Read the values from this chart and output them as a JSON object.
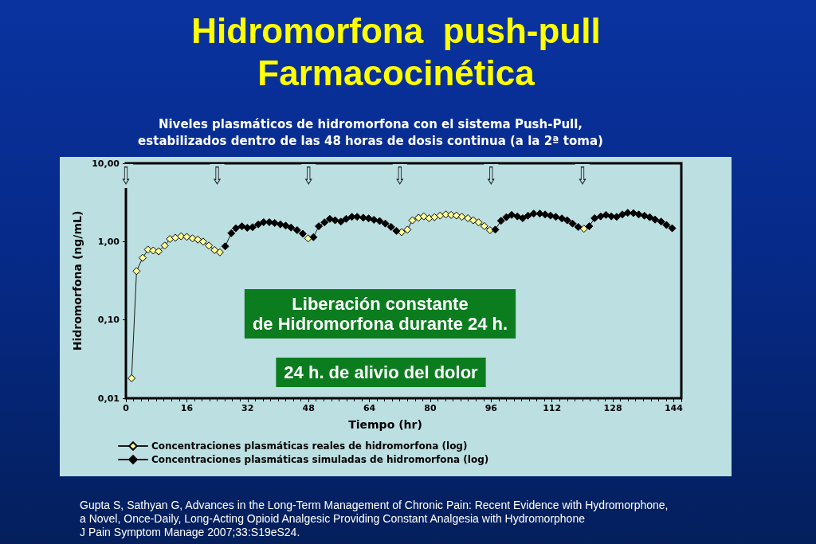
{
  "chart_data": {
    "type": "line",
    "title": "Hidromorfona  push-pull\nFarmacocinética",
    "subtitle": "Niveles plasmáticos de hidromorfona con el sistema Push-Pull,\nestabilizados dentro de las 48 horas de dosis continua (a la 2ª toma)",
    "xlabel": "Tiempo (hr)",
    "ylabel": "Hidromorfona (ng/mL)",
    "xlim": [
      0,
      146
    ],
    "xticks": [
      0,
      16,
      32,
      48,
      64,
      80,
      96,
      112,
      128,
      144
    ],
    "ylim": [
      0.01,
      10
    ],
    "yticks": [
      {
        "value": 0.01,
        "label": "0,01"
      },
      {
        "value": 0.1,
        "label": "0,10"
      },
      {
        "value": 1,
        "label": "1,00"
      },
      {
        "value": 10,
        "label": "10,00"
      }
    ],
    "log": true,
    "marker": "diamond",
    "legend": "bottom",
    "series": [
      {
        "name": "Concentraciones plasmáticas reales de hidromorfona (log)",
        "color": "#ffff99",
        "x": [
          1.5,
          2.8,
          4.4,
          5.8,
          7.2,
          8.6,
          10.2,
          11.6,
          13.0,
          14.5,
          16.0,
          17.5,
          18.9,
          20.3,
          21.8,
          23.3,
          24.7,
          26.1,
          47.9,
          49.3,
          72.5,
          74.0,
          75.3,
          76.9,
          78.3,
          79.7,
          81.1,
          82.6,
          84.1,
          85.5,
          86.9,
          88.3,
          89.9,
          91.3,
          92.7,
          94.2,
          95.7,
          97.1,
          120.4
        ],
        "values": [
          0.018,
          0.42,
          0.62,
          0.79,
          0.77,
          0.75,
          0.89,
          1.08,
          1.12,
          1.17,
          1.15,
          1.1,
          1.06,
          1.0,
          0.89,
          0.78,
          0.73,
          null,
          1.1,
          null,
          1.32,
          1.42,
          1.87,
          2.02,
          2.1,
          1.99,
          2.05,
          2.15,
          2.22,
          2.19,
          2.15,
          2.07,
          1.99,
          1.87,
          1.76,
          1.58,
          1.4,
          null,
          1.46
        ]
      },
      {
        "name": "Concentraciones plasmáticas simuladas de hidromorfona (log)",
        "color": "#000000",
        "x": [
          26.1,
          27.7,
          28.9,
          30.5,
          31.9,
          33.3,
          34.8,
          36.2,
          37.7,
          39.1,
          40.6,
          42.0,
          43.4,
          45.0,
          46.5,
          47.9,
          49.3,
          50.7,
          52.2,
          53.6,
          55.0,
          56.5,
          57.9,
          59.4,
          60.8,
          62.4,
          63.8,
          65.2,
          66.7,
          68.2,
          69.7,
          71.1,
          72.5,
          97.1,
          98.6,
          100.0,
          101.4,
          102.9,
          104.3,
          105.7,
          107.2,
          108.8,
          110.2,
          111.6,
          113.0,
          114.6,
          116.0,
          117.4,
          118.9,
          120.4,
          121.8,
          123.2,
          124.8,
          126.2,
          127.6,
          129.0,
          130.5,
          131.9,
          133.4,
          134.8,
          136.3,
          137.7,
          139.1,
          140.7,
          142.1,
          143.6
        ],
        "values": [
          0.87,
          1.28,
          1.48,
          1.57,
          1.5,
          1.53,
          1.66,
          1.77,
          1.77,
          1.73,
          1.66,
          1.6,
          1.51,
          1.4,
          1.26,
          null,
          1.14,
          1.57,
          1.76,
          1.95,
          1.87,
          1.8,
          1.95,
          2.07,
          2.07,
          2.02,
          1.98,
          1.9,
          1.83,
          1.7,
          1.54,
          1.37,
          null,
          1.42,
          1.84,
          2.05,
          2.19,
          2.1,
          1.99,
          2.14,
          2.28,
          2.28,
          2.22,
          2.15,
          2.07,
          1.98,
          1.87,
          1.7,
          1.54,
          null,
          1.57,
          1.99,
          2.1,
          2.19,
          2.1,
          2.07,
          2.22,
          2.33,
          2.31,
          2.22,
          2.14,
          2.05,
          1.91,
          1.8,
          1.63,
          1.48
        ]
      }
    ],
    "annotations": [
      "Liberación constante\nde Hidromorfona durante 24 h.",
      "24 h. de alivio del dolor",
      "⇩",
      "⇩",
      "⇩",
      "⇩",
      "⇩",
      "⇩",
      "Gupta S, Sathyan G, Advances in the Long-Term Management of Chronic Pain: Recent Evidence with Hydromorphone,\na Novel, Once-Daily, Long-Acting Opioid Analgesic Providing Constant Analgesia with Hydromorphone\nJ Pain Symptom Manage 2007;33:S19eS24."
    ]
  }
}
